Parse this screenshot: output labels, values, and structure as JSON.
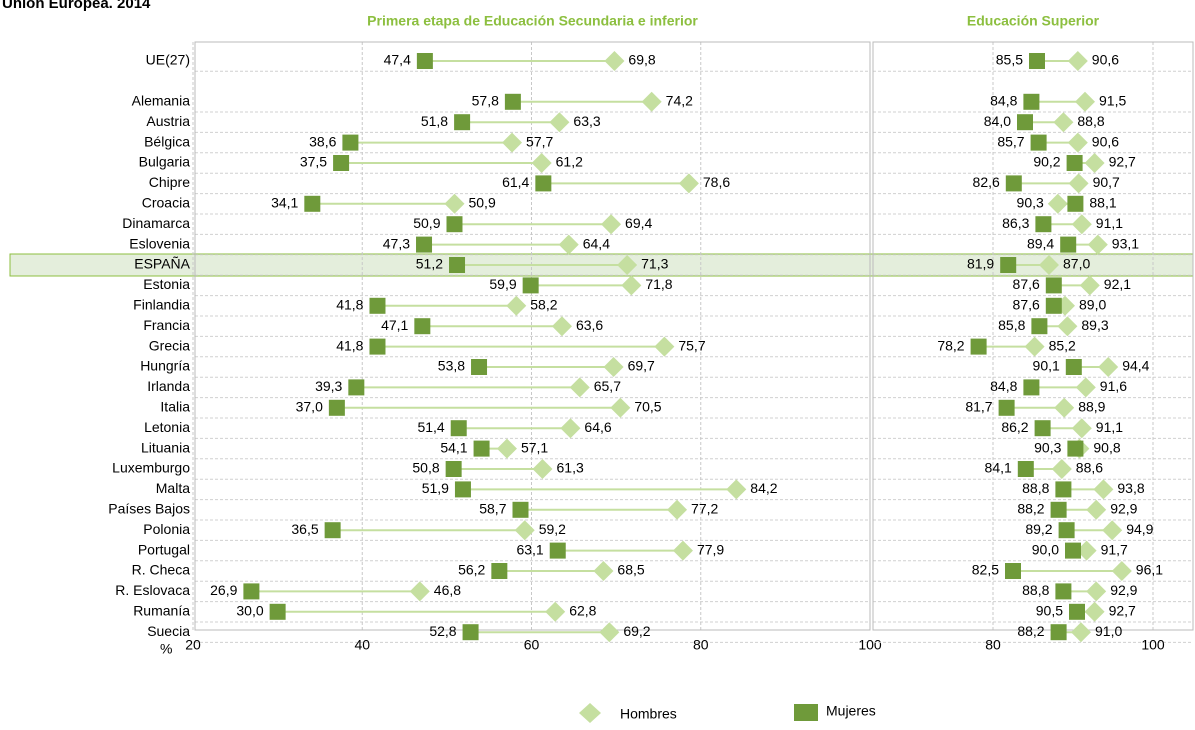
{
  "title": "Unión Europea. 2014",
  "highlight": "ESPAÑA",
  "chart_data": [
    {
      "type": "dumbbell",
      "title": "Primera etapa de Educación Secundaria e inferior",
      "xlabel": "%",
      "categories": [
        "UE(27)",
        null,
        "Alemania",
        "Austria",
        "Bélgica",
        "Bulgaria",
        "Chipre",
        "Croacia",
        "Dinamarca",
        "Eslovenia",
        "ESPAÑA",
        "Estonia",
        "Finlandia",
        "Francia",
        "Grecia",
        "Hungría",
        "Irlanda",
        "Italia",
        "Letonia",
        "Lituania",
        "Luxemburgo",
        "Malta",
        "Países Bajos",
        "Polonia",
        "Portugal",
        "R. Checa",
        "R. Eslovaca",
        "Rumanía",
        "Suecia"
      ],
      "series": [
        {
          "name": "Hombres",
          "color": "#c5dfa0",
          "marker": "diamond",
          "values": [
            69.8,
            null,
            74.2,
            63.3,
            57.7,
            61.2,
            78.6,
            50.9,
            69.4,
            64.4,
            71.3,
            71.8,
            58.2,
            63.6,
            75.7,
            69.7,
            65.7,
            70.5,
            64.6,
            57.1,
            61.3,
            84.2,
            77.2,
            59.2,
            77.9,
            68.5,
            46.8,
            62.8,
            69.2
          ],
          "value_labels": [
            "69,8",
            null,
            "74,2",
            "63,3",
            "57,7",
            "61,2",
            "78,6",
            "50,9",
            "69,4",
            "64,4",
            "71,3",
            "71,8",
            "58,2",
            "63,6",
            "75,7",
            "69,7",
            "65,7",
            "70,5",
            "64,6",
            "57,1",
            "61,3",
            "84,2",
            "77,2",
            "59,2",
            "77,9",
            "68,5",
            "46,8",
            "62,8",
            "69,2"
          ]
        },
        {
          "name": "Mujeres",
          "color": "#6f9a3a",
          "marker": "square",
          "values": [
            47.4,
            null,
            57.8,
            51.8,
            38.6,
            37.5,
            61.4,
            34.1,
            50.9,
            47.3,
            51.2,
            59.9,
            41.8,
            47.1,
            41.8,
            53.8,
            39.3,
            37.0,
            51.4,
            54.1,
            50.8,
            51.9,
            58.7,
            36.5,
            63.1,
            56.2,
            26.9,
            30.0,
            52.8
          ],
          "value_labels": [
            "47,4",
            null,
            "57,8",
            "51,8",
            "38,6",
            "37,5",
            "61,4",
            "34,1",
            "50,9",
            "47,3",
            "51,2",
            "59,9",
            "41,8",
            "47,1",
            "41,8",
            "53,8",
            "39,3",
            "37,0",
            "51,4",
            "54,1",
            "50,8",
            "51,9",
            "58,7",
            "36,5",
            "63,1",
            "56,2",
            "26,9",
            "30,0",
            "52,8"
          ]
        }
      ],
      "xlim": [
        20,
        100
      ],
      "xticks": [
        20,
        40,
        60,
        80,
        100
      ],
      "grid": true
    },
    {
      "type": "dumbbell",
      "title": "Educación Superior",
      "series": [
        {
          "color": "#c5dfa0",
          "marker": "diamond",
          "values": [
            90.6,
            null,
            91.5,
            88.8,
            90.6,
            92.7,
            90.7,
            88.1,
            91.1,
            93.1,
            87.0,
            92.1,
            89.0,
            89.3,
            85.2,
            94.4,
            91.6,
            88.9,
            91.1,
            90.8,
            88.6,
            93.8,
            92.9,
            94.9,
            91.7,
            96.1,
            92.9,
            92.7,
            91.0
          ],
          "value_labels": [
            "90,6",
            null,
            "91,5",
            "88,8",
            "90,6",
            "92,7",
            "90,7",
            "88,1",
            "91,1",
            "93,1",
            "87,0",
            "92,1",
            "89,0",
            "89,3",
            "85,2",
            "94,4",
            "91,6",
            "88,9",
            "91,1",
            "90,8",
            "88,6",
            "93,8",
            "92,9",
            "94,9",
            "91,7",
            "96,1",
            "92,9",
            "92,7",
            "91,0"
          ]
        },
        {
          "color": "#6f9a3a",
          "marker": "square",
          "values": [
            85.5,
            null,
            84.8,
            84.0,
            85.7,
            90.2,
            82.6,
            90.3,
            86.3,
            89.4,
            81.9,
            87.6,
            87.6,
            85.8,
            78.2,
            90.1,
            84.8,
            81.7,
            86.2,
            90.3,
            84.1,
            88.8,
            88.2,
            89.2,
            90.0,
            82.5,
            88.8,
            90.5,
            88.2
          ],
          "value_labels": [
            "85,5",
            null,
            "84,8",
            "84,0",
            "85,7",
            "90,2",
            "82,6",
            "90,3",
            "86,3",
            "89,4",
            "81,9",
            "87,6",
            "87,6",
            "85,8",
            "78,2",
            "90,1",
            "84,8",
            "81,7",
            "86,2",
            "90,3",
            "84,1",
            "88,8",
            "88,2",
            "89,2",
            "90,0",
            "82,5",
            "88,8",
            "90,5",
            "88,2"
          ]
        }
      ],
      "xlim": [
        65,
        105
      ],
      "xticks": [
        80,
        100
      ],
      "grid": true
    }
  ]
}
